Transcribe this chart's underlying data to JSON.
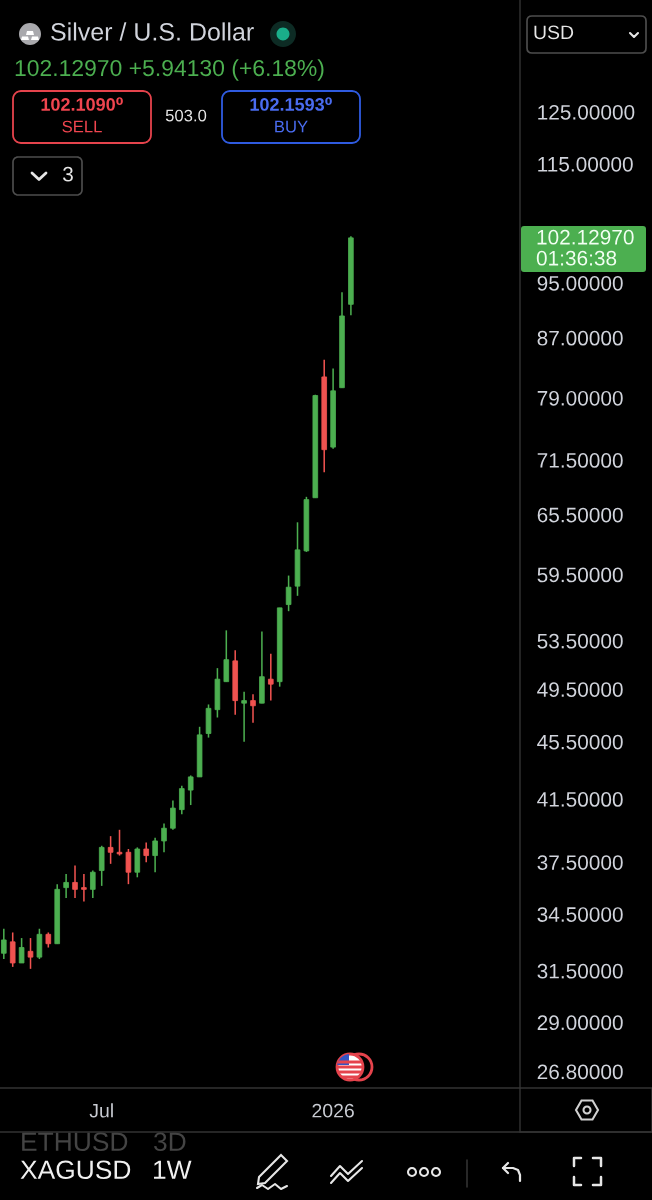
{
  "chart_data": {
    "type": "candlestick",
    "title": "Silver / U.S. Dollar",
    "subtitle": "102.12970 +5.94130 (+6.18%)",
    "x": [
      "2025-04-21",
      "2025-04-28",
      "2025-05-05",
      "2025-05-12",
      "2025-05-19",
      "2025-05-26",
      "2025-06-02",
      "2025-06-09",
      "2025-06-16",
      "2025-06-23",
      "2025-06-30",
      "2025-07-07",
      "2025-07-14",
      "2025-07-21",
      "2025-07-28",
      "2025-08-04",
      "2025-08-11",
      "2025-08-18",
      "2025-08-25",
      "2025-09-01",
      "2025-09-08",
      "2025-09-15",
      "2025-09-22",
      "2025-09-29",
      "2025-10-06",
      "2025-10-13",
      "2025-10-20",
      "2025-10-27",
      "2025-11-03",
      "2025-11-10",
      "2025-11-17",
      "2025-11-24",
      "2025-12-01",
      "2025-12-08",
      "2025-12-15",
      "2025-12-22",
      "2025-12-29",
      "2026-01-05",
      "2026-01-12",
      "2026-01-19"
    ],
    "ohlc": [
      [
        32.4,
        33.7,
        32.1,
        33.1
      ],
      [
        33.0,
        33.5,
        31.7,
        31.9
      ],
      [
        31.9,
        33.2,
        31.9,
        32.7
      ],
      [
        32.5,
        33.2,
        31.6,
        32.2
      ],
      [
        32.2,
        33.7,
        32.1,
        33.4
      ],
      [
        33.4,
        33.5,
        32.7,
        32.9
      ],
      [
        32.9,
        36.2,
        32.9,
        35.9
      ],
      [
        36.0,
        36.8,
        35.4,
        36.3
      ],
      [
        36.3,
        37.3,
        35.4,
        35.9
      ],
      [
        36.0,
        36.8,
        35.2,
        35.9
      ],
      [
        35.9,
        37.0,
        35.4,
        36.9
      ],
      [
        37.0,
        38.5,
        36.1,
        38.4
      ],
      [
        38.4,
        39.1,
        37.4,
        38.1
      ],
      [
        38.1,
        39.5,
        37.9,
        38.0
      ],
      [
        38.1,
        38.3,
        36.2,
        36.9
      ],
      [
        36.9,
        38.4,
        36.6,
        38.3
      ],
      [
        38.3,
        38.7,
        37.5,
        37.9
      ],
      [
        37.9,
        39.0,
        36.9,
        38.8
      ],
      [
        38.8,
        39.9,
        38.1,
        39.6
      ],
      [
        39.6,
        41.4,
        39.5,
        40.9
      ],
      [
        40.8,
        42.4,
        40.5,
        42.2
      ],
      [
        42.1,
        43.1,
        41.1,
        43.0
      ],
      [
        43.0,
        46.6,
        43.0,
        46.0
      ],
      [
        46.1,
        48.3,
        45.8,
        48.0
      ],
      [
        47.9,
        51.2,
        47.3,
        50.3
      ],
      [
        50.1,
        54.4,
        50.1,
        51.9
      ],
      [
        51.8,
        52.7,
        47.5,
        48.6
      ],
      [
        48.4,
        49.3,
        45.5,
        48.6
      ],
      [
        48.6,
        49.1,
        46.9,
        48.2
      ],
      [
        48.4,
        54.3,
        48.4,
        50.5
      ],
      [
        50.3,
        52.4,
        48.6,
        49.9
      ],
      [
        50.1,
        56.4,
        49.7,
        56.4
      ],
      [
        56.7,
        59.4,
        56.1,
        58.3
      ],
      [
        58.4,
        64.7,
        57.5,
        61.9
      ],
      [
        61.8,
        67.4,
        61.7,
        67.1
      ],
      [
        67.3,
        79.4,
        67.3,
        79.3
      ],
      [
        81.7,
        84.0,
        70.1,
        72.7
      ],
      [
        73.0,
        82.8,
        72.8,
        79.9
      ],
      [
        80.3,
        93.6,
        80.3,
        90.1
      ],
      [
        91.8,
        102.4,
        90.2,
        102.13
      ]
    ],
    "colors": [
      "#4caf50",
      "#f05350",
      "#4caf50",
      "#f05350",
      "#4caf50",
      "#f05350",
      "#4caf50",
      "#4caf50",
      "#f05350",
      "#f05350",
      "#4caf50",
      "#4caf50",
      "#f05350",
      "#f05350",
      "#f05350",
      "#4caf50",
      "#f05350",
      "#4caf50",
      "#4caf50",
      "#4caf50",
      "#4caf50",
      "#4caf50",
      "#4caf50",
      "#4caf50",
      "#4caf50",
      "#4caf50",
      "#f05350",
      "#4caf50",
      "#f05350",
      "#4caf50",
      "#f05350",
      "#4caf50",
      "#4caf50",
      "#4caf50",
      "#4caf50",
      "#4caf50",
      "#f05350",
      "#4caf50",
      "#4caf50",
      "#4caf50"
    ],
    "log": true,
    "ylim": [
      26.1,
      149.6
    ],
    "yticks": [
      {
        "value": 26.8,
        "label": "26.80000"
      },
      {
        "value": 29,
        "label": "29.00000"
      },
      {
        "value": 31.5,
        "label": "31.50000"
      },
      {
        "value": 34.5,
        "label": "34.50000"
      },
      {
        "value": 37.5,
        "label": "37.50000"
      },
      {
        "value": 41.5,
        "label": "41.50000"
      },
      {
        "value": 45.5,
        "label": "45.50000"
      },
      {
        "value": 49.5,
        "label": "49.50000"
      },
      {
        "value": 53.5,
        "label": "53.50000"
      },
      {
        "value": 59.5,
        "label": "59.50000"
      },
      {
        "value": 65.5,
        "label": "65.50000"
      },
      {
        "value": 71.5,
        "label": "71.50000"
      },
      {
        "value": 79,
        "label": "79.00000"
      },
      {
        "value": 87,
        "label": "87.00000"
      },
      {
        "value": 95,
        "label": "95.00000"
      },
      {
        "value": 115,
        "label": "115.00000"
      },
      {
        "value": 125,
        "label": "125.00000"
      }
    ],
    "xlim": [
      "2025-04-18",
      "2026-06-01"
    ],
    "xticks": [
      {
        "value": "2025-07-07",
        "label": "Jul"
      },
      {
        "value": "2026-01-05",
        "label": "2026"
      }
    ],
    "annotations": [
      "102.1090⁰",
      "SELL",
      "503.0",
      "102.1593⁰",
      "BUY",
      "3",
      "USD",
      "102.12970",
      "01:36:38",
      "ETHUSD",
      "3D",
      "XAGUSD",
      "1W"
    ]
  }
}
